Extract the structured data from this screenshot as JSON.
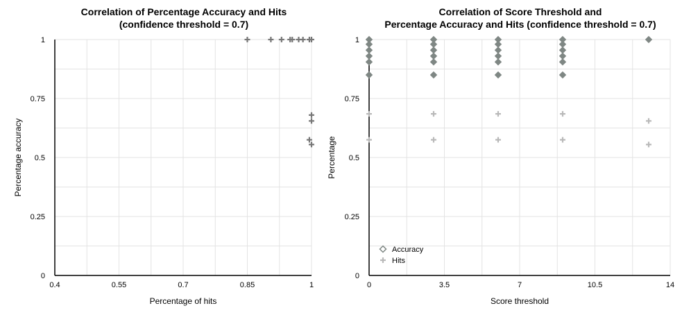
{
  "chart_data": [
    {
      "type": "scatter",
      "title": "Correlation of Percentage Accuracy and Hits\n(confidence threshold = 0.7)",
      "xlabel": "Percentage of hits",
      "ylabel": "Percentage accuracy",
      "xlim": [
        0.4,
        1
      ],
      "ylim": [
        0,
        1
      ],
      "xticks": [
        "0.4",
        "0.55",
        "0.7",
        "0.85",
        "1"
      ],
      "yticks": [
        "0",
        "0.25",
        "0.5",
        "0.75",
        "1"
      ],
      "grid": true,
      "series": [
        {
          "marker": "plus",
          "color": "#777777",
          "points": [
            [
              0.85,
              1
            ],
            [
              0.905,
              1
            ],
            [
              0.93,
              1
            ],
            [
              0.95,
              1
            ],
            [
              0.955,
              1
            ],
            [
              0.97,
              1
            ],
            [
              0.98,
              1
            ],
            [
              0.995,
              1
            ],
            [
              1,
              1
            ],
            [
              1,
              0.68
            ],
            [
              1,
              0.655
            ],
            [
              0.995,
              0.575
            ],
            [
              1,
              0.555
            ]
          ]
        }
      ]
    },
    {
      "type": "scatter",
      "title": "Correlation of Score Threshold and\nPercentage Accuracy and Hits (confidence threshold = 0.7)",
      "xlabel": "Score threshold",
      "ylabel": "Percentage",
      "xlim": [
        0,
        14
      ],
      "ylim": [
        0,
        1
      ],
      "xticks": [
        "0",
        "3.5",
        "7",
        "10.5",
        "14"
      ],
      "yticks": [
        "0",
        "0.25",
        "0.5",
        "0.75",
        "1"
      ],
      "grid": true,
      "legend": "bottom-left",
      "series": [
        {
          "name": "Accuracy",
          "marker": "diamond",
          "color": "#7f8784",
          "points": [
            [
              0,
              1
            ],
            [
              0,
              0.98
            ],
            [
              0,
              0.955
            ],
            [
              0,
              0.93
            ],
            [
              0,
              0.905
            ],
            [
              0,
              0.85
            ],
            [
              3,
              1
            ],
            [
              3,
              0.98
            ],
            [
              3,
              0.955
            ],
            [
              3,
              0.93
            ],
            [
              3,
              0.905
            ],
            [
              3,
              0.85
            ],
            [
              6,
              1
            ],
            [
              6,
              0.98
            ],
            [
              6,
              0.955
            ],
            [
              6,
              0.93
            ],
            [
              6,
              0.905
            ],
            [
              6,
              0.85
            ],
            [
              9,
              1
            ],
            [
              9,
              0.98
            ],
            [
              9,
              0.955
            ],
            [
              9,
              0.93
            ],
            [
              9,
              0.905
            ],
            [
              9,
              0.85
            ],
            [
              13,
              1
            ]
          ]
        },
        {
          "name": "Hits",
          "marker": "plus",
          "color": "#b9b9b9",
          "points": [
            [
              0,
              0.685
            ],
            [
              0,
              0.575
            ],
            [
              3,
              0.685
            ],
            [
              3,
              0.575
            ],
            [
              6,
              0.685
            ],
            [
              6,
              0.575
            ],
            [
              9,
              0.685
            ],
            [
              9,
              0.575
            ],
            [
              13,
              0.655
            ],
            [
              13,
              0.555
            ]
          ]
        }
      ]
    }
  ]
}
